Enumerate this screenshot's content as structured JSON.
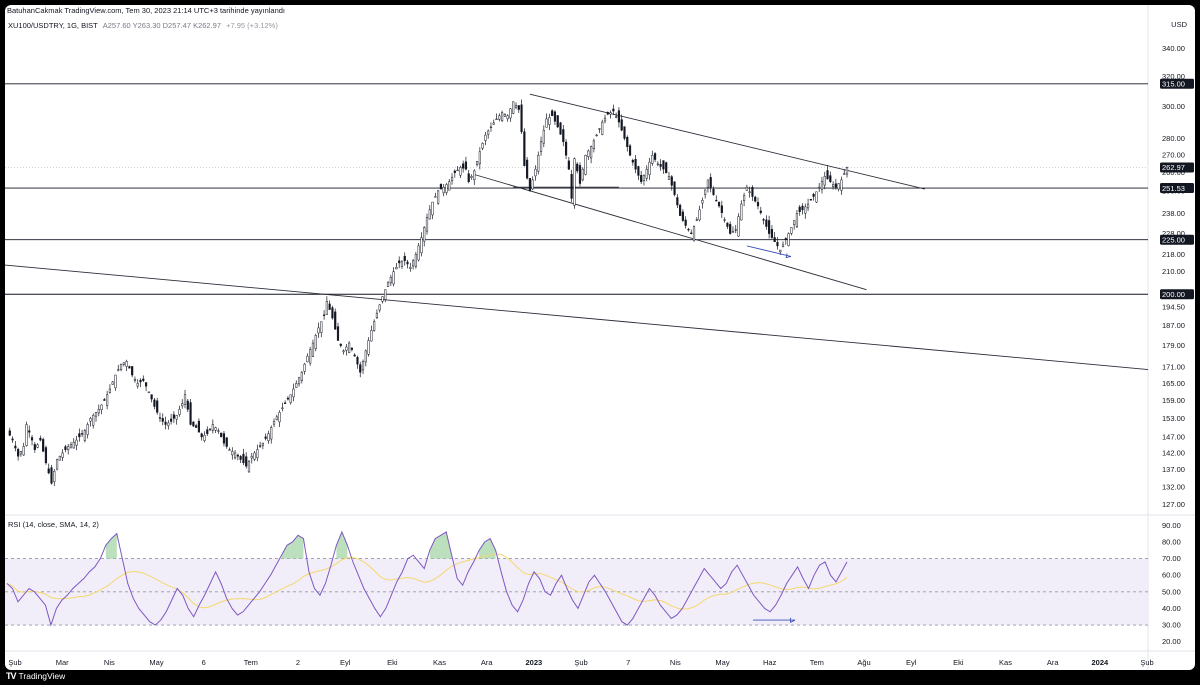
{
  "header": {
    "published": "BatuhanCakmak TradingView.com, Tem 30, 2023 21:14 UTC+3 tarihinde yayınlandı",
    "symbol": "XU100/USDTRY, 1G, BIST",
    "ohlc": "A257.60  Y263.30  D257.47  K262.97",
    "change": "+7.95 (+3.12%)",
    "currency": "USD"
  },
  "rsi": {
    "label": "RSI (14, close, SMA, 14, 2)",
    "ticks": [
      "90.00",
      "80.00",
      "70.00",
      "60.00",
      "50.00",
      "40.00",
      "30.00",
      "20.00"
    ]
  },
  "footer": {
    "brand": "TradingView"
  },
  "colors": {
    "candle_up": "#ffffff",
    "candle_down": "#131722",
    "rsi_line": "#7e57c2",
    "rsi_ma": "#f5d76e",
    "rsi_band": "#ede7f6",
    "divergence_arrow": "#3f51b5"
  },
  "chart_data": {
    "type": "candlestick",
    "price_scale": "log",
    "ylim": [
      125,
      350
    ],
    "price_ticks": [
      340,
      320,
      300,
      280,
      270,
      260,
      250,
      238,
      228,
      218,
      210,
      200,
      194.5,
      187,
      179,
      171,
      165,
      159,
      153,
      147,
      142,
      137,
      132,
      127
    ],
    "x_labels": [
      "Şub",
      "Mar",
      "Nis",
      "May",
      "6",
      "Tem",
      "2",
      "Eyl",
      "Eki",
      "Kas",
      "Ara",
      "2023",
      "Şub",
      "7",
      "Nis",
      "May",
      "Haz",
      "Tem",
      "Ağu",
      "Eyl",
      "Eki",
      "Kas",
      "Ara",
      "2024",
      "Şub"
    ],
    "horizontal_levels": [
      315.0,
      251.53,
      225.0,
      200.0
    ],
    "last_price": 262.97,
    "price_path": [
      [
        0,
        149
      ],
      [
        2,
        146
      ],
      [
        4,
        141
      ],
      [
        6,
        144
      ],
      [
        7,
        151
      ],
      [
        9,
        146
      ],
      [
        10,
        143
      ],
      [
        12,
        146
      ],
      [
        14,
        139
      ],
      [
        16,
        133
      ],
      [
        18,
        140
      ],
      [
        20,
        142
      ],
      [
        22,
        144
      ],
      [
        25,
        146
      ],
      [
        28,
        149
      ],
      [
        30,
        153
      ],
      [
        33,
        156
      ],
      [
        35,
        159
      ],
      [
        37,
        163
      ],
      [
        39,
        168
      ],
      [
        41,
        172
      ],
      [
        43,
        173
      ],
      [
        45,
        168
      ],
      [
        47,
        165
      ],
      [
        49,
        166
      ],
      [
        51,
        162
      ],
      [
        53,
        157
      ],
      [
        55,
        153
      ],
      [
        57,
        151
      ],
      [
        59,
        152
      ],
      [
        61,
        154
      ],
      [
        63,
        158
      ],
      [
        64,
        161
      ],
      [
        65,
        156
      ],
      [
        66,
        151
      ],
      [
        68,
        150
      ],
      [
        70,
        147
      ],
      [
        72,
        148
      ],
      [
        74,
        151
      ],
      [
        76,
        149
      ],
      [
        78,
        145
      ],
      [
        80,
        143
      ],
      [
        82,
        142
      ],
      [
        84,
        140
      ],
      [
        86,
        138
      ],
      [
        88,
        141
      ],
      [
        90,
        143
      ],
      [
        92,
        145
      ],
      [
        94,
        148
      ],
      [
        96,
        152
      ],
      [
        98,
        155
      ],
      [
        100,
        158
      ],
      [
        102,
        161
      ],
      [
        104,
        165
      ],
      [
        106,
        169
      ],
      [
        108,
        175
      ],
      [
        110,
        180
      ],
      [
        112,
        186
      ],
      [
        114,
        191
      ],
      [
        115,
        197
      ],
      [
        117,
        190
      ],
      [
        119,
        181
      ],
      [
        121,
        177
      ],
      [
        123,
        180
      ],
      [
        125,
        175
      ],
      [
        127,
        169
      ],
      [
        129,
        177
      ],
      [
        131,
        185
      ],
      [
        133,
        192
      ],
      [
        135,
        199
      ],
      [
        137,
        205
      ],
      [
        139,
        210
      ],
      [
        141,
        214
      ],
      [
        143,
        215
      ],
      [
        145,
        212
      ],
      [
        147,
        218
      ],
      [
        149,
        226
      ],
      [
        151,
        236
      ],
      [
        153,
        244
      ],
      [
        155,
        250
      ],
      [
        157,
        252
      ],
      [
        159,
        255
      ],
      [
        161,
        260
      ],
      [
        163,
        263
      ],
      [
        165,
        262
      ],
      [
        166,
        255
      ],
      [
        168,
        261
      ],
      [
        170,
        272
      ],
      [
        172,
        282
      ],
      [
        174,
        287
      ],
      [
        176,
        292
      ],
      [
        178,
        296
      ],
      [
        180,
        294
      ],
      [
        182,
        303
      ],
      [
        184,
        298
      ],
      [
        185,
        284
      ],
      [
        186,
        264
      ],
      [
        188,
        250
      ],
      [
        190,
        262
      ],
      [
        192,
        278
      ],
      [
        194,
        292
      ],
      [
        196,
        294
      ],
      [
        198,
        287
      ],
      [
        200,
        278
      ],
      [
        202,
        262
      ],
      [
        203,
        246
      ],
      [
        204,
        268
      ],
      [
        206,
        254
      ],
      [
        208,
        270
      ],
      [
        210,
        275
      ],
      [
        212,
        282
      ],
      [
        214,
        290
      ],
      [
        216,
        295
      ],
      [
        218,
        297
      ],
      [
        220,
        290
      ],
      [
        222,
        280
      ],
      [
        224,
        270
      ],
      [
        226,
        262
      ],
      [
        228,
        255
      ],
      [
        230,
        262
      ],
      [
        232,
        270
      ],
      [
        234,
        265
      ],
      [
        236,
        262
      ],
      [
        238,
        258
      ],
      [
        240,
        248
      ],
      [
        242,
        237
      ],
      [
        244,
        232
      ],
      [
        246,
        228
      ],
      [
        248,
        235
      ],
      [
        250,
        245
      ],
      [
        252,
        256
      ],
      [
        254,
        248
      ],
      [
        256,
        242
      ],
      [
        258,
        235
      ],
      [
        260,
        228
      ],
      [
        262,
        230
      ],
      [
        264,
        243
      ],
      [
        266,
        252
      ],
      [
        268,
        247
      ],
      [
        270,
        242
      ],
      [
        272,
        235
      ],
      [
        274,
        228
      ],
      [
        276,
        224
      ],
      [
        278,
        220
      ],
      [
        280,
        225
      ],
      [
        282,
        231
      ],
      [
        284,
        238
      ],
      [
        286,
        240
      ],
      [
        288,
        243
      ],
      [
        290,
        247
      ],
      [
        292,
        252
      ],
      [
        294,
        258
      ],
      [
        296,
        255
      ],
      [
        298,
        252
      ],
      [
        300,
        256
      ],
      [
        302,
        262.97
      ]
    ],
    "rsi_series": [
      55,
      52,
      44,
      48,
      52,
      50,
      46,
      42,
      30,
      40,
      45,
      48,
      52,
      55,
      58,
      62,
      65,
      70,
      78,
      82,
      85,
      70,
      55,
      46,
      40,
      36,
      32,
      30,
      33,
      38,
      45,
      52,
      48,
      40,
      35,
      42,
      48,
      55,
      62,
      55,
      46,
      40,
      36,
      38,
      42,
      46,
      50,
      55,
      60,
      66,
      72,
      78,
      80,
      84,
      82,
      62,
      52,
      48,
      55,
      66,
      78,
      86,
      78,
      68,
      60,
      52,
      46,
      40,
      35,
      40,
      48,
      56,
      62,
      70,
      72,
      68,
      64,
      75,
      82,
      84,
      86,
      72,
      58,
      54,
      62,
      68,
      75,
      80,
      82,
      75,
      62,
      50,
      42,
      38,
      45,
      55,
      62,
      58,
      50,
      48,
      55,
      60,
      52,
      45,
      40,
      48,
      56,
      60,
      55,
      50,
      44,
      38,
      32,
      30,
      34,
      40,
      46,
      52,
      48,
      42,
      38,
      34,
      36,
      40,
      46,
      52,
      58,
      64,
      60,
      56,
      52,
      55,
      62,
      66,
      60,
      54,
      48,
      44,
      40,
      38,
      42,
      48,
      55,
      60,
      65,
      58,
      52,
      60,
      66,
      68,
      60,
      56,
      62,
      68
    ],
    "rsi_levels": [
      70,
      50,
      30
    ],
    "rsi_ylim": [
      15,
      95
    ]
  }
}
